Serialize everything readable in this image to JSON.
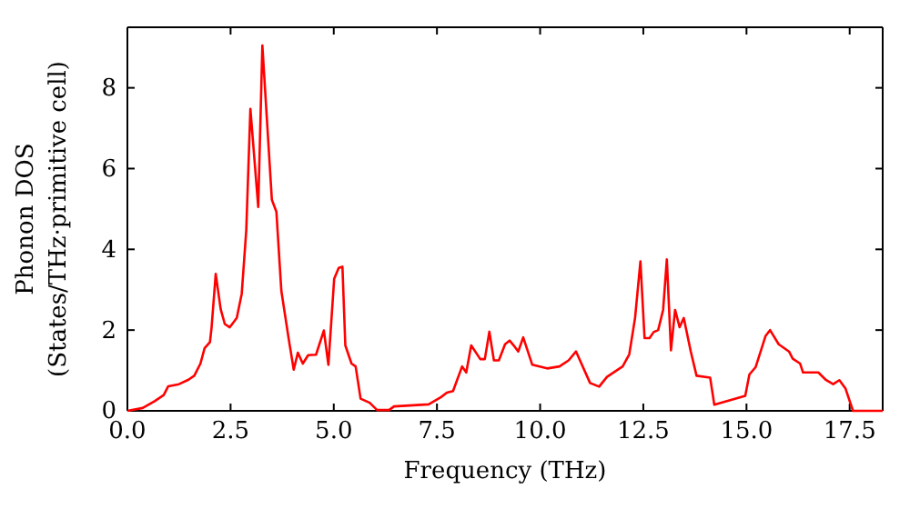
{
  "chart_data": {
    "type": "line",
    "xlabel": "Frequency (THz)",
    "ylabel": "Phonon DOS\n(States/THz·primitive cell)",
    "xlim": [
      0,
      18.3
    ],
    "ylim": [
      0,
      9.5
    ],
    "xticks": [
      {
        "value": 0,
        "label": "0.0"
      },
      {
        "value": 2.5,
        "label": "2.5"
      },
      {
        "value": 5,
        "label": "5.0"
      },
      {
        "value": 7.5,
        "label": "7.5"
      },
      {
        "value": 10,
        "label": "10.0"
      },
      {
        "value": 12.5,
        "label": "12.5"
      },
      {
        "value": 15,
        "label": "15.0"
      },
      {
        "value": 17.5,
        "label": "17.5"
      }
    ],
    "yticks": [
      0,
      2,
      4,
      6,
      8
    ],
    "marker": "none",
    "line_style": "solid",
    "series": [
      {
        "color": "#ff0000",
        "x": [
          0,
          0.37,
          0.66,
          0.88,
          0.99,
          1.25,
          1.48,
          1.62,
          1.77,
          1.87,
          2.0,
          2.04,
          2.14,
          2.26,
          2.36,
          2.48,
          2.65,
          2.77,
          2.88,
          2.98,
          3.17,
          3.27,
          3.5,
          3.61,
          3.73,
          3.91,
          4.03,
          4.13,
          4.25,
          4.38,
          4.57,
          4.76,
          4.87,
          5.01,
          5.12,
          5.21,
          5.28,
          5.43,
          5.53,
          5.65,
          5.87,
          6.05,
          6.34,
          6.46,
          7.3,
          7.6,
          7.74,
          7.89,
          8.11,
          8.21,
          8.33,
          8.55,
          8.66,
          8.77,
          8.88,
          9.0,
          9.15,
          9.26,
          9.36,
          9.47,
          9.59,
          9.81,
          10.17,
          10.47,
          10.69,
          10.87,
          11.21,
          11.43,
          11.62,
          12.0,
          12.16,
          12.3,
          12.43,
          12.53,
          12.65,
          12.75,
          12.86,
          12.98,
          13.07,
          13.17,
          13.27,
          13.38,
          13.48,
          13.65,
          13.79,
          14.12,
          14.22,
          14.97,
          15.07,
          15.22,
          15.46,
          15.57,
          15.78,
          16.03,
          16.12,
          16.3,
          16.37,
          16.74,
          16.93,
          17.1,
          17.25,
          17.4,
          17.58,
          18.3
        ],
        "values": [
          0,
          0.07,
          0.24,
          0.39,
          0.61,
          0.66,
          0.77,
          0.87,
          1.17,
          1.55,
          1.7,
          2.07,
          3.39,
          2.52,
          2.15,
          2.07,
          2.3,
          2.9,
          4.47,
          7.48,
          5.05,
          9.05,
          5.23,
          4.93,
          2.97,
          1.77,
          1.02,
          1.44,
          1.17,
          1.38,
          1.39,
          1.99,
          1.14,
          3.27,
          3.54,
          3.57,
          1.62,
          1.17,
          1.1,
          0.3,
          0.2,
          0.02,
          0.02,
          0.11,
          0.16,
          0.34,
          0.45,
          0.49,
          1.1,
          0.95,
          1.62,
          1.28,
          1.28,
          1.96,
          1.25,
          1.25,
          1.65,
          1.74,
          1.62,
          1.47,
          1.82,
          1.14,
          1.05,
          1.1,
          1.25,
          1.47,
          0.69,
          0.6,
          0.84,
          1.1,
          1.4,
          2.3,
          3.7,
          1.8,
          1.8,
          1.95,
          2.0,
          2.5,
          3.75,
          1.5,
          2.5,
          2.07,
          2.3,
          1.47,
          0.87,
          0.82,
          0.15,
          0.37,
          0.9,
          1.08,
          1.85,
          2.0,
          1.65,
          1.47,
          1.29,
          1.17,
          0.95,
          0.95,
          0.76,
          0.66,
          0.76,
          0.55,
          0,
          0
        ]
      }
    ]
  }
}
